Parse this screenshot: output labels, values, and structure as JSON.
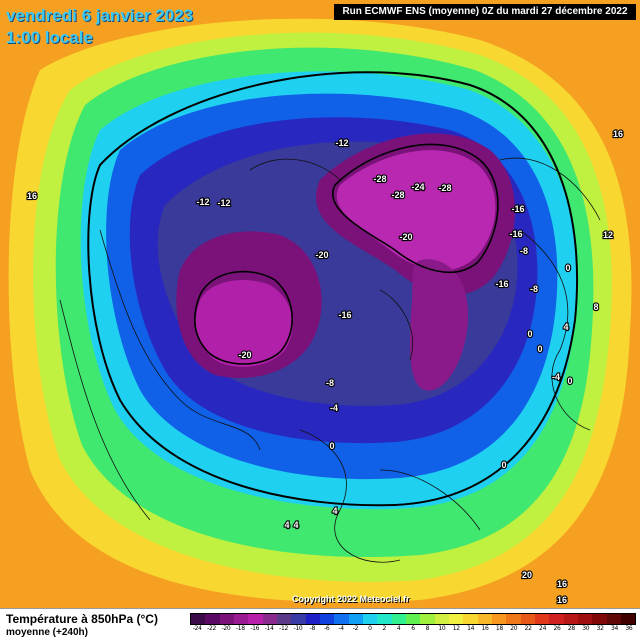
{
  "header": {
    "date": "vendredi 6 janvier 2023",
    "time": "1:00 locale",
    "run": "Run ECMWF ENS (moyenne) 0Z du mardi 27 décembre 2022"
  },
  "copyright": "Copyright 2022 Meteociel.fr",
  "footer": {
    "title": "Température à 850hPa (°C)",
    "subtitle": "moyenne   (+240h)"
  },
  "legend": {
    "values": [
      "-24",
      "-22",
      "-20",
      "-18",
      "-16",
      "-14",
      "-12",
      "-10",
      "-8",
      "-6",
      "-4",
      "-2",
      "0",
      "2",
      "4",
      "6",
      "8",
      "10",
      "12",
      "14",
      "16",
      "18",
      "20",
      "22",
      "24",
      "26",
      "28",
      "30",
      "32",
      "34",
      "36"
    ],
    "colors": [
      "#3a0a4a",
      "#5a0a62",
      "#7a127a",
      "#9a1a94",
      "#b820ac",
      "#8a2a8e",
      "#5c3a8a",
      "#3a3aa4",
      "#2020c8",
      "#1040e0",
      "#1070f0",
      "#10a0f8",
      "#20d0f0",
      "#20e8c8",
      "#30f090",
      "#60f050",
      "#a0f040",
      "#d0f040",
      "#f0f040",
      "#f8d830",
      "#f8b828",
      "#f89820",
      "#f07818",
      "#e85818",
      "#e03818",
      "#d02020",
      "#b81818",
      "#a01010",
      "#800808",
      "#600808",
      "#400000"
    ]
  },
  "contour_labels": [
    "-12",
    "-12",
    "-12",
    "-28",
    "-24",
    "-28",
    "-28",
    "-20",
    "-16",
    "-16",
    "-8",
    "-16",
    "-20",
    "-16",
    "-20",
    "-8",
    "-4",
    "0",
    "0",
    "16",
    "16",
    "12",
    "8",
    "4",
    "0",
    "-8",
    "0",
    "-4",
    "0",
    "0",
    "4",
    "4",
    "4",
    "20",
    "16",
    "16"
  ],
  "map_colors": {
    "yellow": "#f8d830",
    "orange": "#f5a020",
    "green": "#80e840",
    "cyan": "#20d8f0",
    "blue": "#2040e0",
    "navy": "#3a3a9a",
    "purple": "#8a1a9a",
    "magenta": "#b828b0"
  }
}
